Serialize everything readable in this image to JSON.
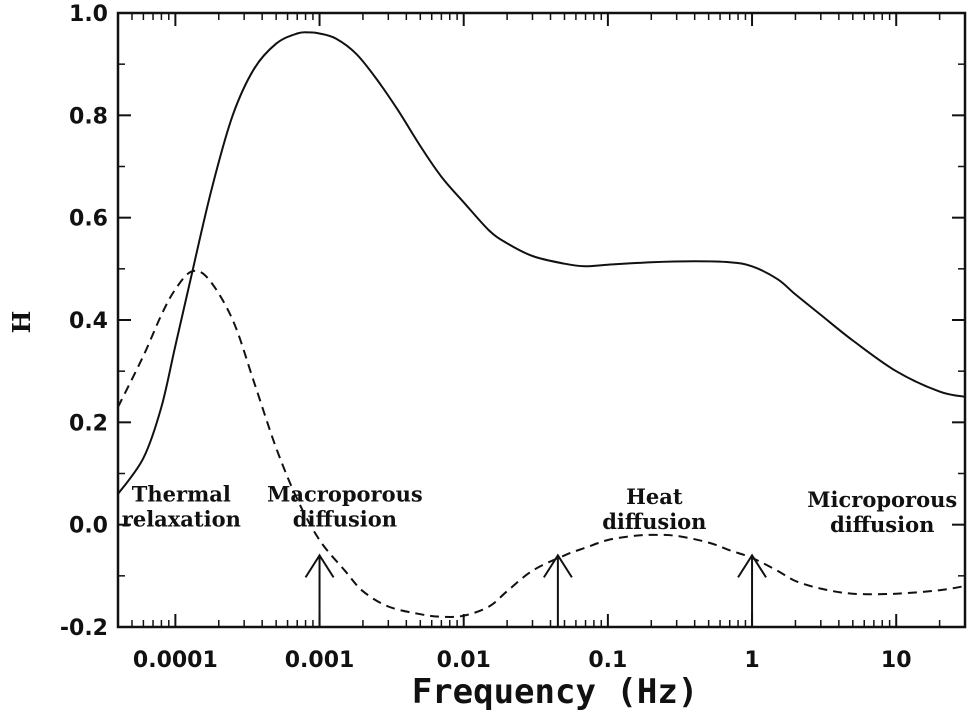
{
  "chart_data": {
    "type": "line",
    "xlabel": "Frequency (Hz)",
    "ylabel": "H",
    "xscale": "log",
    "xlim": [
      4e-05,
      30
    ],
    "ylim": [
      -0.2,
      1.0
    ],
    "grid": false,
    "xticks": [
      {
        "value": 0.0001,
        "label": "0.0001"
      },
      {
        "value": 0.001,
        "label": "0.001"
      },
      {
        "value": 0.01,
        "label": "0.01"
      },
      {
        "value": 0.1,
        "label": "0.1"
      },
      {
        "value": 1,
        "label": "1"
      },
      {
        "value": 10,
        "label": "10"
      }
    ],
    "yticks": [
      {
        "value": 1.0,
        "label": "1.0"
      },
      {
        "value": 0.8,
        "label": "0.8"
      },
      {
        "value": 0.6,
        "label": "0.6"
      },
      {
        "value": 0.4,
        "label": "0.4"
      },
      {
        "value": 0.2,
        "label": "0.2"
      },
      {
        "value": 0.0,
        "label": "0.0"
      },
      {
        "value": -0.2,
        "label": "-0.2"
      }
    ],
    "series": [
      {
        "style": "solid",
        "x": [
          4e-05,
          6e-05,
          8e-05,
          0.0001,
          0.00013,
          0.00018,
          0.00025,
          0.00035,
          0.0005,
          0.0007,
          0.00085,
          0.001,
          0.0013,
          0.0018,
          0.0025,
          0.0035,
          0.005,
          0.007,
          0.01,
          0.015,
          0.02,
          0.03,
          0.05,
          0.07,
          0.1,
          0.2,
          0.4,
          0.7,
          1,
          1.5,
          2,
          3,
          5,
          10,
          20,
          30
        ],
        "y": [
          0.06,
          0.13,
          0.23,
          0.35,
          0.49,
          0.66,
          0.8,
          0.89,
          0.94,
          0.96,
          0.962,
          0.96,
          0.95,
          0.92,
          0.87,
          0.81,
          0.74,
          0.68,
          0.63,
          0.575,
          0.55,
          0.525,
          0.51,
          0.505,
          0.508,
          0.513,
          0.515,
          0.513,
          0.505,
          0.48,
          0.45,
          0.41,
          0.36,
          0.3,
          0.26,
          0.25
        ]
      },
      {
        "style": "dashed",
        "x": [
          4e-05,
          6e-05,
          8e-05,
          0.0001,
          0.00013,
          0.00017,
          0.00025,
          0.00035,
          0.0005,
          0.0007,
          0.001,
          0.0015,
          0.002,
          0.003,
          0.005,
          0.007,
          0.01,
          0.015,
          0.02,
          0.03,
          0.05,
          0.07,
          0.1,
          0.15,
          0.2,
          0.3,
          0.5,
          0.7,
          1,
          1.5,
          2,
          3,
          5,
          10,
          20,
          30
        ],
        "y": [
          0.23,
          0.33,
          0.41,
          0.46,
          0.495,
          0.48,
          0.4,
          0.28,
          0.15,
          0.05,
          -0.03,
          -0.09,
          -0.13,
          -0.16,
          -0.175,
          -0.18,
          -0.178,
          -0.16,
          -0.13,
          -0.09,
          -0.06,
          -0.045,
          -0.03,
          -0.022,
          -0.02,
          -0.022,
          -0.035,
          -0.05,
          -0.065,
          -0.09,
          -0.11,
          -0.125,
          -0.135,
          -0.135,
          -0.128,
          -0.12
        ]
      }
    ],
    "annotations": [
      {
        "lines": [
          "Thermal",
          "relaxation"
        ],
        "x": 0.00011,
        "y": 0.045
      },
      {
        "lines": [
          "Macroporous",
          "diffusion"
        ],
        "x": 0.0015,
        "y": 0.045
      },
      {
        "lines": [
          "Heat",
          "diffusion"
        ],
        "x": 0.21,
        "y": 0.04
      },
      {
        "lines": [
          "Microporous",
          "diffusion"
        ],
        "x": 8,
        "y": 0.035
      }
    ],
    "arrows": [
      {
        "x": 0.001,
        "y_top": -0.06
      },
      {
        "x": 0.045,
        "y_top": -0.06
      },
      {
        "x": 1.0,
        "y_top": -0.06
      }
    ]
  }
}
